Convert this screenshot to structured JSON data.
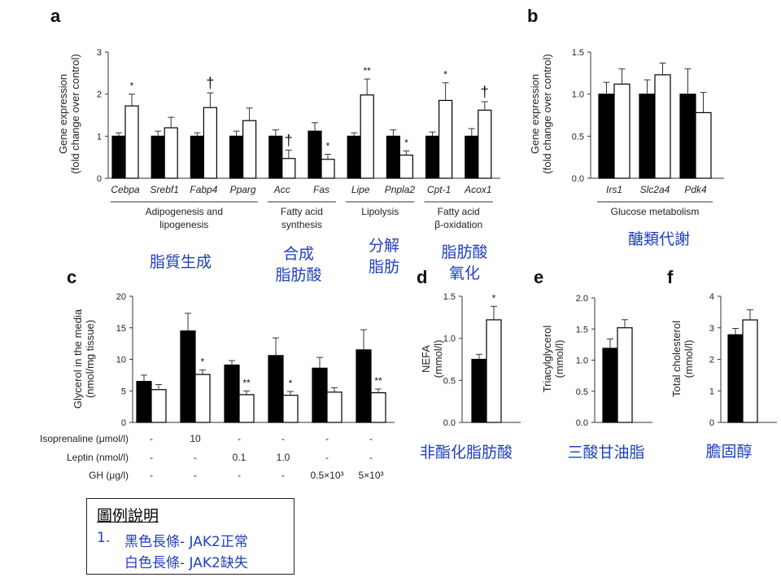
{
  "panel_letters": [
    "a",
    "b",
    "c",
    "d",
    "e",
    "f"
  ],
  "chart_data": [
    {
      "id": "a",
      "type": "bar",
      "ylabel": "Gene expression (fold change over control)",
      "ylim": [
        0,
        3
      ],
      "yticks": [
        "0",
        "1",
        "2",
        "3"
      ],
      "categories": [
        "Cebpa",
        "Srebf1",
        "Fabp4",
        "Pparg",
        "Acc",
        "Fas",
        "Lipe",
        "Pnpla2",
        "Cpt-1",
        "Acox1"
      ],
      "series": [
        {
          "color": "#000000",
          "values": [
            1.0,
            1.0,
            1.0,
            1.0,
            1.0,
            1.12,
            1.0,
            1.0,
            1.0,
            1.0
          ],
          "errors": [
            0.08,
            0.12,
            0.08,
            0.12,
            0.15,
            0.2,
            0.08,
            0.15,
            0.1,
            0.18
          ]
        },
        {
          "color": "#ffffff",
          "values": [
            1.72,
            1.2,
            1.68,
            1.37,
            0.47,
            0.45,
            1.98,
            0.55,
            1.85,
            1.62
          ],
          "errors": [
            0.28,
            0.25,
            0.35,
            0.3,
            0.2,
            0.12,
            0.38,
            0.1,
            0.42,
            0.2
          ]
        }
      ],
      "significance": [
        "*",
        "",
        "†",
        "",
        "†",
        "*",
        "**",
        "*",
        "*",
        "†"
      ],
      "groups": [
        {
          "label": "Adipogenesis and lipogenesis",
          "from": 0,
          "to": 3
        },
        {
          "label": "Fatty acid synthesis",
          "from": 4,
          "to": 5
        },
        {
          "label": "Lipolysis",
          "from": 6,
          "to": 7
        },
        {
          "label": "Fatty acid β-oxidation",
          "from": 8,
          "to": 9
        }
      ],
      "annotations": [
        "脂質生成",
        "合成 脂肪酸",
        "分解 脂肪",
        "脂肪酸 氧化"
      ]
    },
    {
      "id": "b",
      "type": "bar",
      "ylabel": "Gene expression (fold change over control)",
      "ylim": [
        0,
        1.5
      ],
      "yticks": [
        "0.0",
        "0.5",
        "1.0",
        "1.5"
      ],
      "categories": [
        "Irs1",
        "Slc2a4",
        "Pdk4"
      ],
      "series": [
        {
          "color": "#000000",
          "values": [
            1.0,
            1.0,
            1.0
          ],
          "errors": [
            0.14,
            0.17,
            0.3
          ]
        },
        {
          "color": "#ffffff",
          "values": [
            1.12,
            1.23,
            0.78
          ],
          "errors": [
            0.18,
            0.14,
            0.24
          ]
        }
      ],
      "groups": [
        {
          "label": "Glucose metabolism",
          "from": 0,
          "to": 2
        }
      ],
      "annotations": [
        "醣類代謝"
      ]
    },
    {
      "id": "c",
      "type": "bar",
      "ylabel": "Glycerol in the media (nmol/mg tissue)",
      "ylim": [
        0,
        20
      ],
      "yticks": [
        "0",
        "5",
        "10",
        "15",
        "20"
      ],
      "series": [
        {
          "color": "#000000",
          "values": [
            6.5,
            14.5,
            9.1,
            10.6,
            8.6,
            11.5
          ],
          "errors": [
            1.0,
            2.8,
            0.7,
            2.8,
            1.7,
            3.2
          ]
        },
        {
          "color": "#ffffff",
          "values": [
            5.2,
            7.6,
            4.4,
            4.3,
            4.8,
            4.7
          ],
          "errors": [
            0.8,
            0.7,
            0.6,
            0.6,
            0.7,
            0.6
          ]
        }
      ],
      "significance": [
        "",
        "*",
        "**",
        "*",
        "",
        "**"
      ],
      "conditions": [
        {
          "label": "Isoprenaline (μmol/l)",
          "values": [
            "-",
            "10",
            "-",
            "-",
            "-",
            "-"
          ]
        },
        {
          "label": "Leptin (nmol/l)",
          "values": [
            "-",
            "-",
            "0.1",
            "1.0",
            "-",
            "-"
          ]
        },
        {
          "label": "GH (μg/l)",
          "values": [
            "-",
            "-",
            "-",
            "-",
            "0.5×10³",
            "5×10³"
          ]
        }
      ]
    },
    {
      "id": "d",
      "type": "bar",
      "ylabel": "NEFA (mmol/l)",
      "ylim": [
        0,
        1.5
      ],
      "yticks": [
        "0.0",
        "0.5",
        "1.0",
        "1.5"
      ],
      "series": [
        {
          "color": "#000000",
          "values": [
            0.75
          ],
          "errors": [
            0.06
          ]
        },
        {
          "color": "#ffffff",
          "values": [
            1.22
          ],
          "errors": [
            0.16
          ]
        }
      ],
      "significance": [
        "*"
      ],
      "annotations": [
        "非酯化脂肪酸"
      ]
    },
    {
      "id": "e",
      "type": "bar",
      "ylabel": "Triacylglycerol (mmol/l)",
      "ylim": [
        0,
        2.0
      ],
      "yticks": [
        "0.0",
        "0.5",
        "1.0",
        "1.5",
        "2.0"
      ],
      "series": [
        {
          "color": "#000000",
          "values": [
            1.19
          ],
          "errors": [
            0.15
          ]
        },
        {
          "color": "#ffffff",
          "values": [
            1.52
          ],
          "errors": [
            0.13
          ]
        }
      ],
      "annotations": [
        "三酸甘油脂"
      ]
    },
    {
      "id": "f",
      "type": "bar",
      "ylabel": "Total cholesterol (mmol/l)",
      "ylim": [
        0,
        4
      ],
      "yticks": [
        "0",
        "1",
        "2",
        "3",
        "4"
      ],
      "series": [
        {
          "color": "#000000",
          "values": [
            2.78
          ],
          "errors": [
            0.2
          ]
        },
        {
          "color": "#ffffff",
          "values": [
            3.25
          ],
          "errors": [
            0.32
          ]
        }
      ],
      "annotations": [
        "膽固醇"
      ]
    }
  ],
  "legend": {
    "title": "圖例說明",
    "number": "1.",
    "line1": "黑色長條- JAK2正常",
    "line2": "白色長條- JAK2缺失"
  },
  "colors": {
    "annotation": "#1f3fbf",
    "black_bar": "#000000",
    "white_bar": "#ffffff"
  }
}
